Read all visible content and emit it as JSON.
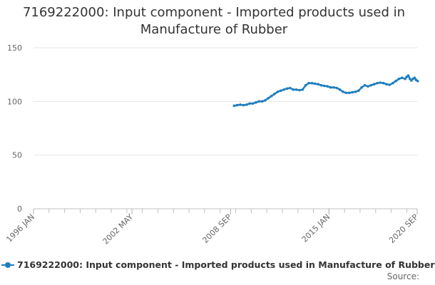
{
  "chart_data": {
    "type": "line",
    "title_lines": [
      "7169222000: Input component - Imported products used in",
      "Manufacture of Rubber"
    ],
    "xlabel": "",
    "ylabel": "",
    "ylim": [
      0,
      150
    ],
    "y_ticks": [
      0,
      50,
      100,
      150
    ],
    "x_range": [
      1996.0,
      2020.67
    ],
    "x_tick_labels": [
      {
        "label": "1996 JAN",
        "x": 1996.0
      },
      {
        "label": "2002 MAY",
        "x": 2002.33
      },
      {
        "label": "2008 SEP",
        "x": 2008.67
      },
      {
        "label": "2015 JAN",
        "x": 2015.0
      },
      {
        "label": "2020 SEP",
        "x": 2020.67
      }
    ],
    "grid": "horizontal",
    "legend_position": "bottom-left",
    "series": [
      {
        "name": "7169222000: Input component - Imported products used in Manufacture of Rubber",
        "color": "#1f7fbf",
        "points": [
          [
            2008.9,
            96
          ],
          [
            2009.1,
            96.5
          ],
          [
            2009.3,
            97
          ],
          [
            2009.5,
            96.5
          ],
          [
            2009.7,
            97
          ],
          [
            2009.9,
            98
          ],
          [
            2010.1,
            98
          ],
          [
            2010.3,
            99
          ],
          [
            2010.5,
            100
          ],
          [
            2010.7,
            100
          ],
          [
            2010.9,
            101
          ],
          [
            2011.1,
            103
          ],
          [
            2011.3,
            105
          ],
          [
            2011.5,
            107
          ],
          [
            2011.7,
            109
          ],
          [
            2011.9,
            110
          ],
          [
            2012.1,
            111
          ],
          [
            2012.3,
            112
          ],
          [
            2012.5,
            112.5
          ],
          [
            2012.7,
            111
          ],
          [
            2012.9,
            111
          ],
          [
            2013.1,
            110.5
          ],
          [
            2013.3,
            111
          ],
          [
            2013.5,
            115
          ],
          [
            2013.7,
            117
          ],
          [
            2013.9,
            117
          ],
          [
            2014.1,
            116.5
          ],
          [
            2014.3,
            116
          ],
          [
            2014.5,
            115
          ],
          [
            2014.7,
            114.5
          ],
          [
            2014.9,
            114
          ],
          [
            2015.1,
            113
          ],
          [
            2015.3,
            113
          ],
          [
            2015.5,
            112.5
          ],
          [
            2015.7,
            111
          ],
          [
            2015.9,
            109
          ],
          [
            2016.1,
            108
          ],
          [
            2016.3,
            108
          ],
          [
            2016.5,
            108.5
          ],
          [
            2016.7,
            109
          ],
          [
            2016.9,
            110
          ],
          [
            2017.1,
            113
          ],
          [
            2017.3,
            115
          ],
          [
            2017.5,
            114
          ],
          [
            2017.7,
            115
          ],
          [
            2017.9,
            116
          ],
          [
            2018.1,
            117
          ],
          [
            2018.3,
            117.5
          ],
          [
            2018.5,
            117
          ],
          [
            2018.7,
            116
          ],
          [
            2018.9,
            115.5
          ],
          [
            2019.1,
            117
          ],
          [
            2019.3,
            119
          ],
          [
            2019.5,
            121
          ],
          [
            2019.7,
            122
          ],
          [
            2019.9,
            121
          ],
          [
            2020.0,
            123
          ],
          [
            2020.1,
            124
          ],
          [
            2020.2,
            121
          ],
          [
            2020.3,
            119.5
          ],
          [
            2020.4,
            121
          ],
          [
            2020.5,
            122
          ],
          [
            2020.6,
            120
          ],
          [
            2020.7,
            119
          ]
        ]
      }
    ]
  },
  "footer": {
    "source_label": "Source:"
  }
}
